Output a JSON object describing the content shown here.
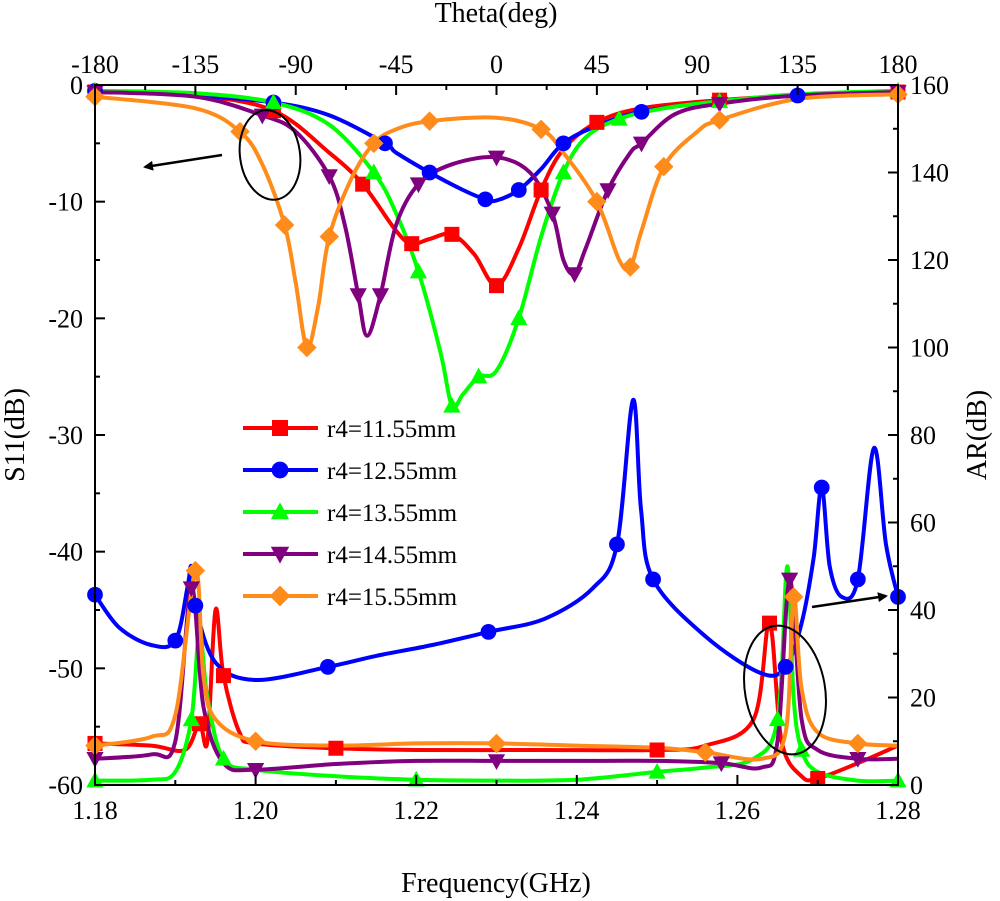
{
  "chart_data": {
    "type": "line",
    "x_bottom": {
      "label": "Frequency(GHz)",
      "range": [
        1.18,
        1.28
      ],
      "ticks": [
        "1.18",
        "1.20",
        "1.22",
        "1.24",
        "1.26",
        "1.28"
      ]
    },
    "x_top": {
      "label": "Theta(deg)",
      "range": [
        -180,
        180
      ],
      "ticks": [
        "-180",
        "-135",
        "-90",
        "-45",
        "0",
        "45",
        "90",
        "135",
        "180"
      ]
    },
    "y_left": {
      "label": "S11(dB)",
      "range": [
        -60,
        0
      ],
      "ticks": [
        "0",
        "-10",
        "-20",
        "-30",
        "-40",
        "-50",
        "-60"
      ]
    },
    "y_right": {
      "label": "AR(dB)",
      "range": [
        0,
        160
      ],
      "ticks": [
        "0",
        "20",
        "40",
        "60",
        "80",
        "100",
        "120",
        "140",
        "160"
      ]
    },
    "legend_position": "center-left",
    "series": [
      {
        "name": "r4=11.55mm",
        "color": "#ff0000",
        "marker": "square",
        "s11_vs_theta": [
          [
            -180,
            -0.6
          ],
          [
            -135,
            -0.9
          ],
          [
            -100,
            -2.2
          ],
          [
            -75,
            -5.8
          ],
          [
            -60,
            -8.5
          ],
          [
            -45,
            -12.5
          ],
          [
            -38,
            -13.6
          ],
          [
            -30,
            -13.2
          ],
          [
            -20,
            -12.8
          ],
          [
            -10,
            -14.5
          ],
          [
            0,
            -17.2
          ],
          [
            10,
            -14
          ],
          [
            20,
            -9
          ],
          [
            30,
            -5.5
          ],
          [
            45,
            -3.2
          ],
          [
            65,
            -2
          ],
          [
            100,
            -1.3
          ],
          [
            135,
            -0.9
          ],
          [
            180,
            -0.6
          ]
        ],
        "ar_vs_freq": [
          [
            1.18,
            9.5
          ],
          [
            1.187,
            9
          ],
          [
            1.1912,
            8
          ],
          [
            1.193,
            14
          ],
          [
            1.194,
            10
          ],
          [
            1.195,
            40
          ],
          [
            1.196,
            25
          ],
          [
            1.198,
            12
          ],
          [
            1.2,
            9.5
          ],
          [
            1.21,
            8.4
          ],
          [
            1.22,
            8
          ],
          [
            1.235,
            8
          ],
          [
            1.25,
            8
          ],
          [
            1.256,
            9
          ],
          [
            1.262,
            15
          ],
          [
            1.264,
            37
          ],
          [
            1.2655,
            10
          ],
          [
            1.268,
            2
          ],
          [
            1.27,
            1.5
          ],
          [
            1.275,
            5
          ],
          [
            1.28,
            9
          ]
        ]
      },
      {
        "name": "r4=12.55mm",
        "color": "#0000ff",
        "marker": "circle",
        "s11_vs_theta": [
          [
            -180,
            -0.5
          ],
          [
            -135,
            -0.9
          ],
          [
            -100,
            -1.5
          ],
          [
            -75,
            -2.6
          ],
          [
            -50,
            -5
          ],
          [
            -45,
            -5.8
          ],
          [
            -30,
            -7.5
          ],
          [
            -15,
            -9
          ],
          [
            -5,
            -9.8
          ],
          [
            0,
            -9.9
          ],
          [
            10,
            -9
          ],
          [
            20,
            -7.2
          ],
          [
            30,
            -5
          ],
          [
            45,
            -3.5
          ],
          [
            65,
            -2.3
          ],
          [
            100,
            -1.4
          ],
          [
            135,
            -0.9
          ],
          [
            180,
            -0.5
          ]
        ],
        "ar_vs_freq": [
          [
            1.18,
            43.5
          ],
          [
            1.183,
            36
          ],
          [
            1.187,
            32
          ],
          [
            1.19,
            33
          ],
          [
            1.1915,
            45
          ],
          [
            1.192,
            50
          ],
          [
            1.1925,
            41
          ],
          [
            1.195,
            28
          ],
          [
            1.2,
            24
          ],
          [
            1.209,
            27
          ],
          [
            1.215,
            29.5
          ],
          [
            1.222,
            32
          ],
          [
            1.229,
            35
          ],
          [
            1.236,
            38
          ],
          [
            1.242,
            45
          ],
          [
            1.245,
            55
          ],
          [
            1.247,
            88
          ],
          [
            1.248,
            63
          ],
          [
            1.2495,
            47
          ],
          [
            1.256,
            34
          ],
          [
            1.263,
            25.5
          ],
          [
            1.266,
            27
          ],
          [
            1.268,
            37
          ],
          [
            1.2695,
            52
          ],
          [
            1.2705,
            68
          ],
          [
            1.2715,
            50
          ],
          [
            1.273,
            43
          ],
          [
            1.275,
            47
          ],
          [
            1.277,
            77
          ],
          [
            1.2785,
            55
          ],
          [
            1.28,
            43
          ]
        ]
      },
      {
        "name": "r4=13.55mm",
        "color": "#00ff00",
        "marker": "triangle",
        "s11_vs_theta": [
          [
            -180,
            -0.5
          ],
          [
            -135,
            -0.7
          ],
          [
            -100,
            -1.5
          ],
          [
            -75,
            -3.4
          ],
          [
            -55,
            -7.5
          ],
          [
            -45,
            -11
          ],
          [
            -35,
            -16
          ],
          [
            -25,
            -23
          ],
          [
            -20,
            -27.5
          ],
          [
            -15,
            -26.5
          ],
          [
            -8,
            -25
          ],
          [
            0,
            -24.5
          ],
          [
            10,
            -20
          ],
          [
            20,
            -13
          ],
          [
            30,
            -7.5
          ],
          [
            40,
            -4.5
          ],
          [
            55,
            -2.9
          ],
          [
            75,
            -2
          ],
          [
            100,
            -1.4
          ],
          [
            135,
            -0.8
          ],
          [
            180,
            -0.5
          ]
        ],
        "ar_vs_freq": [
          [
            1.18,
            1
          ],
          [
            1.187,
            1.2
          ],
          [
            1.19,
            3
          ],
          [
            1.192,
            15
          ],
          [
            1.193,
            35
          ],
          [
            1.194,
            20
          ],
          [
            1.196,
            6
          ],
          [
            1.2,
            3.5
          ],
          [
            1.21,
            2
          ],
          [
            1.22,
            1.2
          ],
          [
            1.229,
            1
          ],
          [
            1.24,
            1.2
          ],
          [
            1.25,
            3
          ],
          [
            1.256,
            4
          ],
          [
            1.262,
            6
          ],
          [
            1.265,
            15
          ],
          [
            1.2662,
            50
          ],
          [
            1.267,
            20
          ],
          [
            1.268,
            8
          ],
          [
            1.27,
            3
          ],
          [
            1.275,
            1
          ],
          [
            1.28,
            1
          ]
        ]
      },
      {
        "name": "r4=14.55mm",
        "color": "#800080",
        "marker": "triangle-down",
        "s11_vs_theta": [
          [
            -180,
            -0.6
          ],
          [
            -135,
            -1
          ],
          [
            -105,
            -2.6
          ],
          [
            -90,
            -4
          ],
          [
            -75,
            -7.8
          ],
          [
            -68,
            -12
          ],
          [
            -62,
            -18
          ],
          [
            -58,
            -21.5
          ],
          [
            -52,
            -18
          ],
          [
            -45,
            -12
          ],
          [
            -35,
            -8.5
          ],
          [
            -20,
            -6.8
          ],
          [
            0,
            -6.2
          ],
          [
            15,
            -7.5
          ],
          [
            25,
            -11
          ],
          [
            30,
            -15
          ],
          [
            35,
            -16.2
          ],
          [
            40,
            -14
          ],
          [
            50,
            -9
          ],
          [
            60,
            -5.8
          ],
          [
            65,
            -5
          ],
          [
            80,
            -2.5
          ],
          [
            100,
            -1.6
          ],
          [
            135,
            -0.9
          ],
          [
            180,
            -0.6
          ]
        ],
        "ar_vs_freq": [
          [
            1.18,
            6
          ],
          [
            1.187,
            7
          ],
          [
            1.19,
            10
          ],
          [
            1.192,
            45
          ],
          [
            1.1935,
            18
          ],
          [
            1.196,
            5
          ],
          [
            1.2,
            3.5
          ],
          [
            1.21,
            4.8
          ],
          [
            1.22,
            5.5
          ],
          [
            1.23,
            5.5
          ],
          [
            1.24,
            5.5
          ],
          [
            1.25,
            5.5
          ],
          [
            1.258,
            5
          ],
          [
            1.263,
            4
          ],
          [
            1.265,
            10
          ],
          [
            1.2665,
            47
          ],
          [
            1.268,
            15
          ],
          [
            1.27,
            8
          ],
          [
            1.275,
            6
          ],
          [
            1.28,
            6
          ]
        ]
      },
      {
        "name": "r4=15.55mm",
        "color": "#ff8c1a",
        "marker": "diamond",
        "s11_vs_theta": [
          [
            -180,
            -1
          ],
          [
            -135,
            -2
          ],
          [
            -115,
            -4
          ],
          [
            -105,
            -6.8
          ],
          [
            -95,
            -12
          ],
          [
            -90,
            -17
          ],
          [
            -85,
            -22.5
          ],
          [
            -80,
            -19
          ],
          [
            -75,
            -13
          ],
          [
            -65,
            -8
          ],
          [
            -55,
            -5
          ],
          [
            -45,
            -3.8
          ],
          [
            -30,
            -3.1
          ],
          [
            0,
            -2.8
          ],
          [
            20,
            -3.8
          ],
          [
            30,
            -5.8
          ],
          [
            45,
            -10
          ],
          [
            55,
            -15
          ],
          [
            60,
            -15.6
          ],
          [
            65,
            -12.5
          ],
          [
            75,
            -7
          ],
          [
            90,
            -4
          ],
          [
            100,
            -3
          ],
          [
            135,
            -1.2
          ],
          [
            180,
            -0.8
          ]
        ],
        "ar_vs_freq": [
          [
            1.18,
            9
          ],
          [
            1.187,
            11
          ],
          [
            1.19,
            16
          ],
          [
            1.1925,
            49
          ],
          [
            1.1935,
            25
          ],
          [
            1.195,
            15
          ],
          [
            1.2,
            10
          ],
          [
            1.21,
            9
          ],
          [
            1.22,
            9.5
          ],
          [
            1.23,
            9.5
          ],
          [
            1.24,
            9
          ],
          [
            1.25,
            8.5
          ],
          [
            1.256,
            7.5
          ],
          [
            1.263,
            6
          ],
          [
            1.266,
            12
          ],
          [
            1.267,
            43
          ],
          [
            1.268,
            22
          ],
          [
            1.27,
            12
          ],
          [
            1.275,
            9.5
          ],
          [
            1.28,
            9
          ]
        ]
      }
    ],
    "annotations": [
      {
        "type": "ellipse",
        "target": "S11 curves",
        "arrow": "points left to S11(dB) axis"
      },
      {
        "type": "ellipse",
        "target": "AR curves",
        "arrow": "points right to AR(dB) axis"
      }
    ]
  }
}
